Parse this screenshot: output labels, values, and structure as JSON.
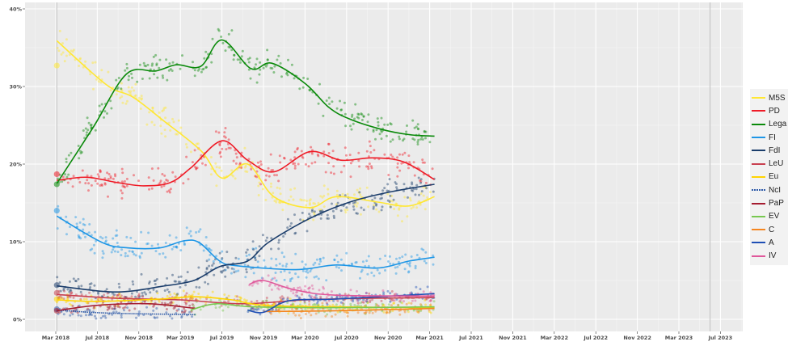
{
  "chart_data": {
    "type": "scatter",
    "title": "",
    "xlabel": "",
    "ylabel": "",
    "ylim": [
      0,
      40
    ],
    "y_ticks": [
      "0%",
      "10%",
      "20%",
      "30%",
      "40%"
    ],
    "y_tick_values": [
      0,
      10,
      20,
      30,
      40
    ],
    "x_ticks": [
      "Mar 2018",
      "Jul 2018",
      "Nov 2018",
      "Mar 2019",
      "Jul 2019",
      "Nov 2019",
      "Mar 2020",
      "Jul 2020",
      "Nov 2020",
      "Mar 2021",
      "Jul 2021",
      "Nov 2021",
      "Mar 2022",
      "Jul 2022",
      "Nov 2022",
      "Mar 2023",
      "Jul 2023"
    ],
    "x_tick_dates": [
      "2018-03-01",
      "2018-07-01",
      "2018-11-01",
      "2019-03-01",
      "2019-07-01",
      "2019-11-01",
      "2020-03-01",
      "2020-07-01",
      "2020-11-01",
      "2021-03-01",
      "2021-07-01",
      "2021-11-01",
      "2022-03-01",
      "2022-07-01",
      "2022-11-01",
      "2023-03-01",
      "2023-07-01"
    ],
    "vertical_lines": [
      "2018-03-04",
      "2023-06-01"
    ],
    "grid": true,
    "legend_position": "right",
    "series": [
      {
        "name": "M5S",
        "color": "#ffe733",
        "election": 32.7,
        "trend": [
          [
            "2018-03-04",
            35.9
          ],
          [
            "2018-06-15",
            31.8
          ],
          [
            "2018-08-15",
            29.7
          ],
          [
            "2018-10-15",
            28.6
          ],
          [
            "2019-01-15",
            25.5
          ],
          [
            "2019-05-01",
            21.7
          ],
          [
            "2019-07-01",
            18.2
          ],
          [
            "2019-09-15",
            20.0
          ],
          [
            "2019-12-01",
            15.8
          ],
          [
            "2020-03-15",
            14.4
          ],
          [
            "2020-06-01",
            15.8
          ],
          [
            "2020-10-01",
            15.1
          ],
          [
            "2021-01-01",
            14.6
          ],
          [
            "2021-03-15",
            15.8
          ]
        ]
      },
      {
        "name": "PD",
        "color": "#ef1c27",
        "election": 18.7,
        "trend": [
          [
            "2018-03-04",
            17.9
          ],
          [
            "2018-06-01",
            18.3
          ],
          [
            "2018-09-01",
            17.6
          ],
          [
            "2018-11-15",
            17.2
          ],
          [
            "2019-02-01",
            17.6
          ],
          [
            "2019-04-01",
            19.5
          ],
          [
            "2019-07-01",
            23.0
          ],
          [
            "2019-09-15",
            20.5
          ],
          [
            "2019-12-01",
            19.0
          ],
          [
            "2020-03-15",
            21.6
          ],
          [
            "2020-06-15",
            20.5
          ],
          [
            "2020-09-15",
            20.8
          ],
          [
            "2020-12-15",
            20.3
          ],
          [
            "2021-03-15",
            18.0
          ]
        ]
      },
      {
        "name": "Lega",
        "color": "#0a8a0a",
        "election": 17.4,
        "trend": [
          [
            "2018-03-04",
            17.5
          ],
          [
            "2018-06-20",
            24.8
          ],
          [
            "2018-09-25",
            31.6
          ],
          [
            "2018-12-20",
            32.0
          ],
          [
            "2019-02-20",
            32.8
          ],
          [
            "2019-04-30",
            32.6
          ],
          [
            "2019-07-01",
            36.0
          ],
          [
            "2019-09-25",
            32.3
          ],
          [
            "2019-11-25",
            33.0
          ],
          [
            "2020-03-01",
            30.4
          ],
          [
            "2020-05-10",
            27.3
          ],
          [
            "2020-07-10",
            25.8
          ],
          [
            "2020-10-10",
            24.5
          ],
          [
            "2021-01-01",
            23.8
          ],
          [
            "2021-03-15",
            23.6
          ]
        ]
      },
      {
        "name": "FI",
        "color": "#1e96e6",
        "election": 14.0,
        "trend": [
          [
            "2018-03-04",
            13.3
          ],
          [
            "2018-07-15",
            9.9
          ],
          [
            "2018-10-01",
            9.2
          ],
          [
            "2019-01-01",
            9.2
          ],
          [
            "2019-03-10",
            10.1
          ],
          [
            "2019-04-25",
            9.9
          ],
          [
            "2019-06-25",
            7.5
          ],
          [
            "2019-08-15",
            6.9
          ],
          [
            "2020-02-05",
            6.4
          ],
          [
            "2020-06-01",
            7.0
          ],
          [
            "2020-10-01",
            6.6
          ],
          [
            "2021-01-01",
            7.5
          ],
          [
            "2021-03-15",
            8.0
          ]
        ]
      },
      {
        "name": "FdI",
        "color": "#1b3d6b",
        "election": 4.4,
        "trend": [
          [
            "2018-03-04",
            4.3
          ],
          [
            "2018-07-15",
            3.6
          ],
          [
            "2018-10-01",
            3.6
          ],
          [
            "2019-01-01",
            4.2
          ],
          [
            "2019-04-10",
            5.0
          ],
          [
            "2019-06-25",
            6.8
          ],
          [
            "2019-09-15",
            7.5
          ],
          [
            "2019-11-15",
            9.9
          ],
          [
            "2020-03-15",
            13.0
          ],
          [
            "2020-07-10",
            15.1
          ],
          [
            "2020-11-05",
            16.4
          ],
          [
            "2021-03-15",
            17.4
          ]
        ]
      },
      {
        "name": "LeU",
        "color": "#c9404f",
        "election": 3.4,
        "trend": [
          [
            "2018-03-04",
            3.2
          ],
          [
            "2018-09-01",
            2.7
          ],
          [
            "2019-03-01",
            2.5
          ],
          [
            "2019-09-01",
            2.0
          ],
          [
            "2020-03-01",
            2.5
          ],
          [
            "2020-09-01",
            2.7
          ],
          [
            "2021-03-15",
            2.8
          ]
        ]
      },
      {
        "name": "Eu",
        "color": "#ffd400",
        "election": 2.6,
        "trend": [
          [
            "2018-03-04",
            2.5
          ],
          [
            "2018-07-01",
            2.3
          ],
          [
            "2019-01-01",
            2.6
          ],
          [
            "2019-04-15",
            2.9
          ],
          [
            "2019-08-01",
            2.5
          ],
          [
            "2019-11-01",
            1.8
          ],
          [
            "2020-06-01",
            1.6
          ],
          [
            "2021-03-15",
            1.5
          ]
        ]
      },
      {
        "name": "NcI",
        "color": "#2e5aa8",
        "election": 1.3,
        "dotted": true,
        "trend": [
          [
            "2018-03-04",
            1.2
          ],
          [
            "2018-08-01",
            0.8
          ],
          [
            "2019-04-15",
            0.6
          ]
        ]
      },
      {
        "name": "PaP",
        "color": "#a51c30",
        "election": 1.1,
        "trend": [
          [
            "2018-03-04",
            1.1
          ],
          [
            "2018-07-01",
            1.8
          ],
          [
            "2018-12-01",
            2.0
          ],
          [
            "2019-04-15",
            1.4
          ]
        ]
      },
      {
        "name": "EV",
        "color": "#78c850",
        "trend": [
          [
            "2019-04-01",
            1.2
          ],
          [
            "2019-06-15",
            2.0
          ],
          [
            "2019-10-01",
            1.6
          ],
          [
            "2020-06-01",
            1.5
          ],
          [
            "2021-03-15",
            1.6
          ]
        ]
      },
      {
        "name": "C",
        "color": "#f5861f",
        "trend": [
          [
            "2019-11-01",
            1.0
          ],
          [
            "2020-06-01",
            1.1
          ],
          [
            "2021-03-15",
            1.4
          ]
        ]
      },
      {
        "name": "A",
        "color": "#1f4fb5",
        "trend": [
          [
            "2019-09-15",
            1.2
          ],
          [
            "2019-11-01",
            0.9
          ],
          [
            "2020-01-15",
            2.4
          ],
          [
            "2020-06-01",
            2.6
          ],
          [
            "2021-03-15",
            3.3
          ]
        ]
      },
      {
        "name": "IV",
        "color": "#e0589b",
        "trend": [
          [
            "2019-09-20",
            4.5
          ],
          [
            "2019-11-01",
            5.0
          ],
          [
            "2020-02-01",
            3.8
          ],
          [
            "2020-06-01",
            3.1
          ],
          [
            "2021-03-15",
            3.0
          ]
        ]
      }
    ]
  },
  "colors": {
    "panel_background": "#ebebeb",
    "grid": "#ffffff",
    "vertical_line": "#c8c8c8"
  }
}
